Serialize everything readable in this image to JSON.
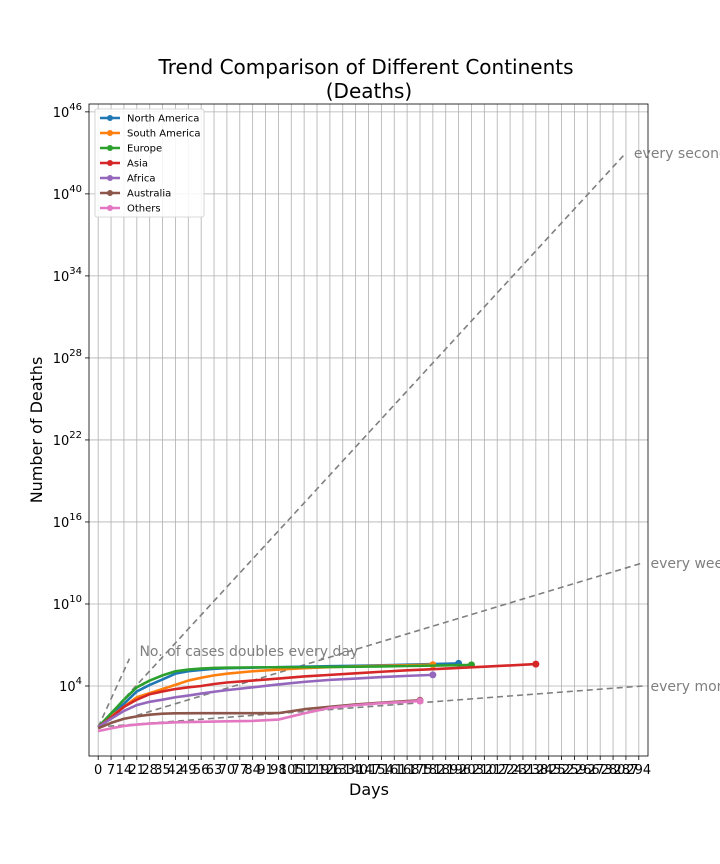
{
  "chart_data": {
    "type": "line",
    "title": "Trend Comparison of Different Continents",
    "subtitle": "(Deaths)",
    "xlabel": "Days",
    "ylabel": "Number of Deaths",
    "y_scale": "log",
    "ylim": [
      1,
      1e+46
    ],
    "xlim": [
      -5,
      299
    ],
    "grid": true,
    "legend_position": "top-left",
    "x_ticks": [
      0,
      7,
      14,
      21,
      28,
      35,
      42,
      49,
      56,
      63,
      70,
      77,
      84,
      91,
      98,
      105,
      112,
      119,
      126,
      133,
      140,
      147,
      154,
      161,
      168,
      175,
      182,
      189,
      196,
      203,
      210,
      217,
      224,
      231,
      238,
      245,
      252,
      259,
      266,
      273,
      280,
      287,
      294
    ],
    "x_tick_labels": [
      "0",
      "7",
      "14",
      "21",
      "28",
      "35",
      "42",
      "49",
      "56",
      "63",
      "70",
      "77",
      "84",
      "91",
      "98",
      "105",
      "112",
      "119",
      "126",
      "133",
      "140",
      "147",
      "154",
      "161",
      "168",
      "175",
      "182",
      "189",
      "196",
      "203",
      "210",
      "217",
      "224",
      "231",
      "238",
      "245",
      "252",
      "259",
      "266",
      "273",
      "280",
      "287",
      "294"
    ],
    "y_ticks": [
      10000,
      10000000000.0,
      1e+16,
      1e+22,
      1e+28,
      1e+34,
      1e+40,
      1e+46
    ],
    "y_tick_base": "10",
    "y_tick_exponents": [
      "4",
      "10",
      "16",
      "22",
      "28",
      "34",
      "40",
      "46"
    ],
    "series": [
      {
        "name": "North America",
        "color": "#1f77b4",
        "x": [
          0,
          7,
          14,
          21,
          28,
          35,
          42,
          49,
          56,
          63,
          70,
          84,
          98,
          112,
          126,
          140,
          154,
          168,
          182,
          196
        ],
        "y": [
          10,
          80,
          500,
          4000,
          12000,
          30000,
          80000,
          120000,
          150000,
          180000,
          200000,
          220000,
          240000,
          260000,
          280000,
          300000,
          330000,
          360000,
          400000,
          450000
        ]
      },
      {
        "name": "South America",
        "color": "#ff7f0e",
        "x": [
          0,
          7,
          14,
          21,
          28,
          35,
          42,
          49,
          56,
          63,
          70,
          84,
          98,
          112,
          126,
          140,
          154,
          168,
          182
        ],
        "y": [
          10,
          60,
          300,
          1500,
          3000,
          6000,
          12000,
          25000,
          40000,
          60000,
          80000,
          120000,
          160000,
          200000,
          240000,
          270000,
          300000,
          330000,
          360000
        ]
      },
      {
        "name": "Europe",
        "color": "#2ca02c",
        "x": [
          0,
          7,
          14,
          21,
          28,
          35,
          42,
          49,
          56,
          63,
          70,
          84,
          98,
          112,
          126,
          140,
          154,
          168,
          182,
          203
        ],
        "y": [
          10,
          100,
          1000,
          8000,
          25000,
          60000,
          120000,
          160000,
          190000,
          210000,
          220000,
          230000,
          235000,
          240000,
          250000,
          260000,
          270000,
          290000,
          310000,
          350000
        ]
      },
      {
        "name": "Asia",
        "color": "#d62728",
        "x": [
          0,
          7,
          14,
          21,
          28,
          35,
          42,
          49,
          56,
          63,
          70,
          84,
          98,
          112,
          126,
          140,
          154,
          168,
          182,
          196,
          210,
          224,
          238
        ],
        "y": [
          10,
          50,
          300,
          1000,
          2500,
          4000,
          6000,
          8000,
          10000,
          14000,
          18000,
          25000,
          35000,
          50000,
          65000,
          85000,
          110000,
          140000,
          170000,
          210000,
          260000,
          320000,
          400000
        ]
      },
      {
        "name": "Africa",
        "color": "#9467bd",
        "x": [
          0,
          7,
          14,
          21,
          28,
          35,
          42,
          49,
          56,
          63,
          70,
          84,
          98,
          112,
          126,
          140,
          154,
          168,
          182
        ],
        "y": [
          10,
          40,
          150,
          400,
          700,
          1000,
          1500,
          2000,
          2800,
          3800,
          5000,
          8000,
          13000,
          20000,
          28000,
          35000,
          45000,
          55000,
          65000
        ]
      },
      {
        "name": "Australia",
        "color": "#8c564b",
        "x": [
          0,
          7,
          14,
          21,
          28,
          35,
          42,
          56,
          70,
          84,
          98,
          112,
          126,
          140,
          154,
          168,
          175
        ],
        "y": [
          8,
          20,
          40,
          60,
          80,
          95,
          100,
          102,
          103,
          103,
          104,
          200,
          300,
          450,
          600,
          800,
          900
        ]
      },
      {
        "name": "Others",
        "color": "#e377c2",
        "x": [
          0,
          7,
          14,
          21,
          28,
          35,
          42,
          56,
          70,
          84,
          98,
          112,
          126,
          140,
          154,
          168,
          175
        ],
        "y": [
          5,
          8,
          12,
          15,
          18,
          20,
          22,
          24,
          26,
          28,
          35,
          100,
          250,
          400,
          550,
          700,
          800
        ]
      }
    ],
    "reference_lines": [
      {
        "label": "every second day",
        "doubling_days": 2,
        "x_end": 287,
        "y_end": 1e+43
      },
      {
        "label": "every week",
        "doubling_days": 7,
        "x_end": 296,
        "y_end": 10000000000000.0
      },
      {
        "label": "every month",
        "doubling_days": 30,
        "x_end": 296,
        "y_end": 10000
      },
      {
        "label": "No. of cases doubles every day",
        "doubling_days": 1
      }
    ]
  }
}
